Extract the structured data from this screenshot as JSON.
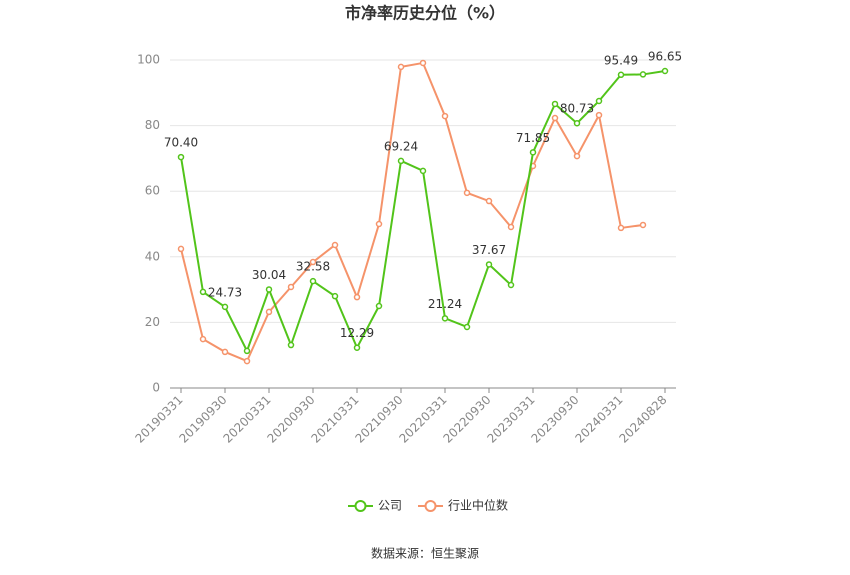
{
  "chart_data": {
    "type": "line",
    "title": "市净率历史分位（%）",
    "source": "数据来源：恒生聚源",
    "categories": [
      "20190331",
      null,
      "20190930",
      null,
      "20200331",
      null,
      "20200930",
      null,
      "20210331",
      null,
      "20210930",
      null,
      "20220331",
      null,
      "20220930",
      null,
      "20230331",
      null,
      "20230930",
      null,
      "20240331",
      null,
      "20240828"
    ],
    "series": [
      {
        "name": "公司",
        "color": "#52c41a",
        "values": [
          70.4,
          29.3,
          24.73,
          11.3,
          30.04,
          13.1,
          32.58,
          28.0,
          12.29,
          25.0,
          69.24,
          66.2,
          21.24,
          18.6,
          37.67,
          31.4,
          71.85,
          86.6,
          80.73,
          87.5,
          95.49,
          95.6,
          96.65
        ],
        "value_labels": [
          "70.40",
          null,
          "24.73",
          null,
          "30.04",
          null,
          "32.58",
          null,
          "12.29",
          null,
          "69.24",
          null,
          "21.24",
          null,
          "37.67",
          null,
          "71.85",
          null,
          "80.73",
          null,
          "95.49",
          null,
          "96.65"
        ]
      },
      {
        "name": "行业中位数",
        "color": "#f5936a",
        "values": [
          42.4,
          14.9,
          11.0,
          8.2,
          23.2,
          30.8,
          38.4,
          43.6,
          27.7,
          50.0,
          97.9,
          99.1,
          82.9,
          59.5,
          57.0,
          49.1,
          67.7,
          82.3,
          70.7,
          83.2,
          48.8,
          49.7,
          null
        ]
      }
    ],
    "ylim": [
      0,
      100
    ],
    "yticks": [
      0,
      20,
      40,
      60,
      80,
      100
    ],
    "grid": true,
    "legend": "bottom"
  }
}
